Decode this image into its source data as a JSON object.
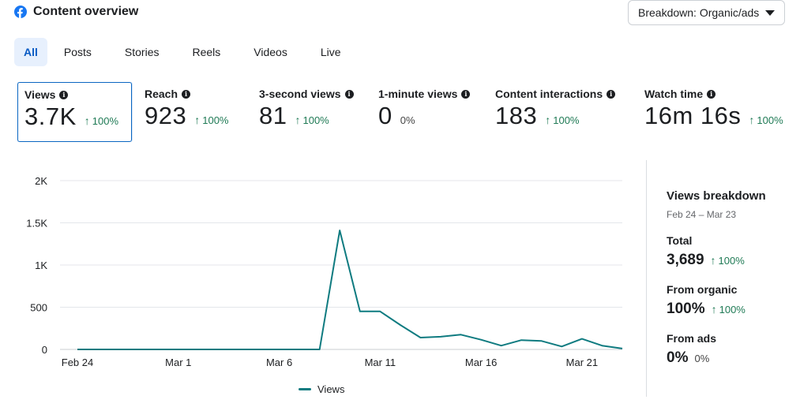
{
  "header": {
    "title": "Content overview",
    "icon": "facebook-icon"
  },
  "breakdown": {
    "label": "Breakdown: Organic/ads"
  },
  "tabs": [
    {
      "label": "All",
      "active": true
    },
    {
      "label": "Posts",
      "active": false
    },
    {
      "label": "Stories",
      "active": false
    },
    {
      "label": "Reels",
      "active": false
    },
    {
      "label": "Videos",
      "active": false
    },
    {
      "label": "Live",
      "active": false
    }
  ],
  "metrics": [
    {
      "label": "Views",
      "value": "3.7K",
      "change": "100%",
      "trend": "up",
      "selected": true
    },
    {
      "label": "Reach",
      "value": "923",
      "change": "100%",
      "trend": "up",
      "selected": false
    },
    {
      "label": "3-second views",
      "value": "81",
      "change": "100%",
      "trend": "up",
      "selected": false
    },
    {
      "label": "1-minute views",
      "value": "0",
      "change": "0%",
      "trend": "flat",
      "selected": false
    },
    {
      "label": "Content interactions",
      "value": "183",
      "change": "100%",
      "trend": "up",
      "selected": false
    },
    {
      "label": "Watch time",
      "value": "16m 16s",
      "change": "100%",
      "trend": "up",
      "selected": false
    }
  ],
  "chart_data": {
    "type": "line",
    "title": "",
    "xlabel": "",
    "ylabel": "",
    "ylim": [
      0,
      2000
    ],
    "y_ticks": [
      0,
      500,
      1000,
      1500,
      2000
    ],
    "y_tick_labels": [
      "0",
      "500",
      "1K",
      "1.5K",
      "2K"
    ],
    "x_tick_labels": [
      {
        "index": 0,
        "label": "Feb 24"
      },
      {
        "index": 5,
        "label": "Mar 1"
      },
      {
        "index": 10,
        "label": "Mar 6"
      },
      {
        "index": 15,
        "label": "Mar 11"
      },
      {
        "index": 20,
        "label": "Mar 16"
      },
      {
        "index": 25,
        "label": "Mar 21"
      }
    ],
    "categories": [
      "Feb 24",
      "Feb 25",
      "Feb 26",
      "Feb 27",
      "Feb 28",
      "Mar 1",
      "Mar 2",
      "Mar 3",
      "Mar 4",
      "Mar 5",
      "Mar 6",
      "Mar 7",
      "Mar 8",
      "Mar 9",
      "Mar 10",
      "Mar 11",
      "Mar 12",
      "Mar 13",
      "Mar 14",
      "Mar 15",
      "Mar 16",
      "Mar 17",
      "Mar 18",
      "Mar 19",
      "Mar 20",
      "Mar 21",
      "Mar 22",
      "Mar 23"
    ],
    "series": [
      {
        "name": "Views",
        "color": "#0f7b80",
        "values": [
          0,
          0,
          0,
          0,
          0,
          0,
          0,
          0,
          0,
          0,
          0,
          0,
          0,
          1410,
          450,
          450,
          290,
          140,
          150,
          175,
          115,
          45,
          110,
          100,
          35,
          125,
          45,
          10
        ]
      }
    ],
    "legend": "bottom-center",
    "grid": true
  },
  "legend": {
    "label": "Views",
    "color": "#0f7b80"
  },
  "sidebar": {
    "title": "Views breakdown",
    "date_range": "Feb 24 – Mar 23",
    "total": {
      "label": "Total",
      "value": "3,689",
      "change": "100%"
    },
    "organic": {
      "label": "From organic",
      "value": "100%",
      "change": "100%"
    },
    "ads": {
      "label": "From ads",
      "value": "0%",
      "change": "0%"
    }
  },
  "colors": {
    "accent": "#0a66c2",
    "positive": "#1f7a55",
    "line": "#0f7b80",
    "facebook": "#1877f2"
  }
}
